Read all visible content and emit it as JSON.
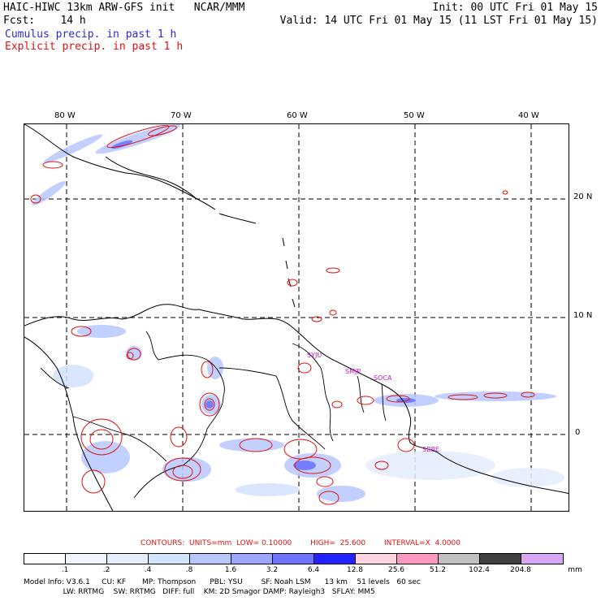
{
  "header": {
    "title": "HAIC-HIWC 13km ARW-GFS init   NCAR/MMM",
    "init": "Init: 00 UTC Fri 01 May 15",
    "fcst_label": "Fcst:    14 h",
    "valid": "Valid: 14 UTC Fri 01 May 15 (11 LST Fri 01 May 15)",
    "cumulus": "Cumulus precip. in past 1 h",
    "explicit": "Explicit precip. in past 1 h"
  },
  "map": {
    "lon_labels": [
      "80 W",
      "70 W",
      "60 W",
      "50 W",
      "40 W"
    ],
    "lat_labels": [
      "20 N",
      "10 N",
      "0"
    ],
    "stations": [
      "SYJU",
      "SMJP",
      "SOCA",
      "SBBE"
    ]
  },
  "contours": {
    "text": "CONTOURS:  UNITS=mm  LOW= 0.10000        HIGH=  25.600        INTERVAL=X  4.0000"
  },
  "scale": {
    "labels": [
      ".1",
      ".2",
      ".4",
      ".8",
      "1.6",
      "3.2",
      "6.4",
      "12.8",
      "25.6",
      "51.2",
      "102.4",
      "204.8"
    ],
    "unit": "mm",
    "colors": [
      "#ffffff",
      "#f2f6ff",
      "#e4eeff",
      "#d2e2ff",
      "#b8c8ff",
      "#9aa6ff",
      "#6e74ff",
      "#2222ff",
      "#ffd4e0",
      "#ff99c4",
      "#c0c0c0",
      "#404040",
      "#d8a8f8"
    ]
  },
  "footer": {
    "line1": "Model Info: V3.6.1     CU: KF       MP: Thompson      PBL: YSU        SF: Noah LSM      13 km    51 levels   60 sec",
    "line2": "                 LW: RRTMG    SW: RRTMG   DIFF: full    KM: 2D Smagor DAMP: Rayleigh3   SFLAY: MM5"
  }
}
